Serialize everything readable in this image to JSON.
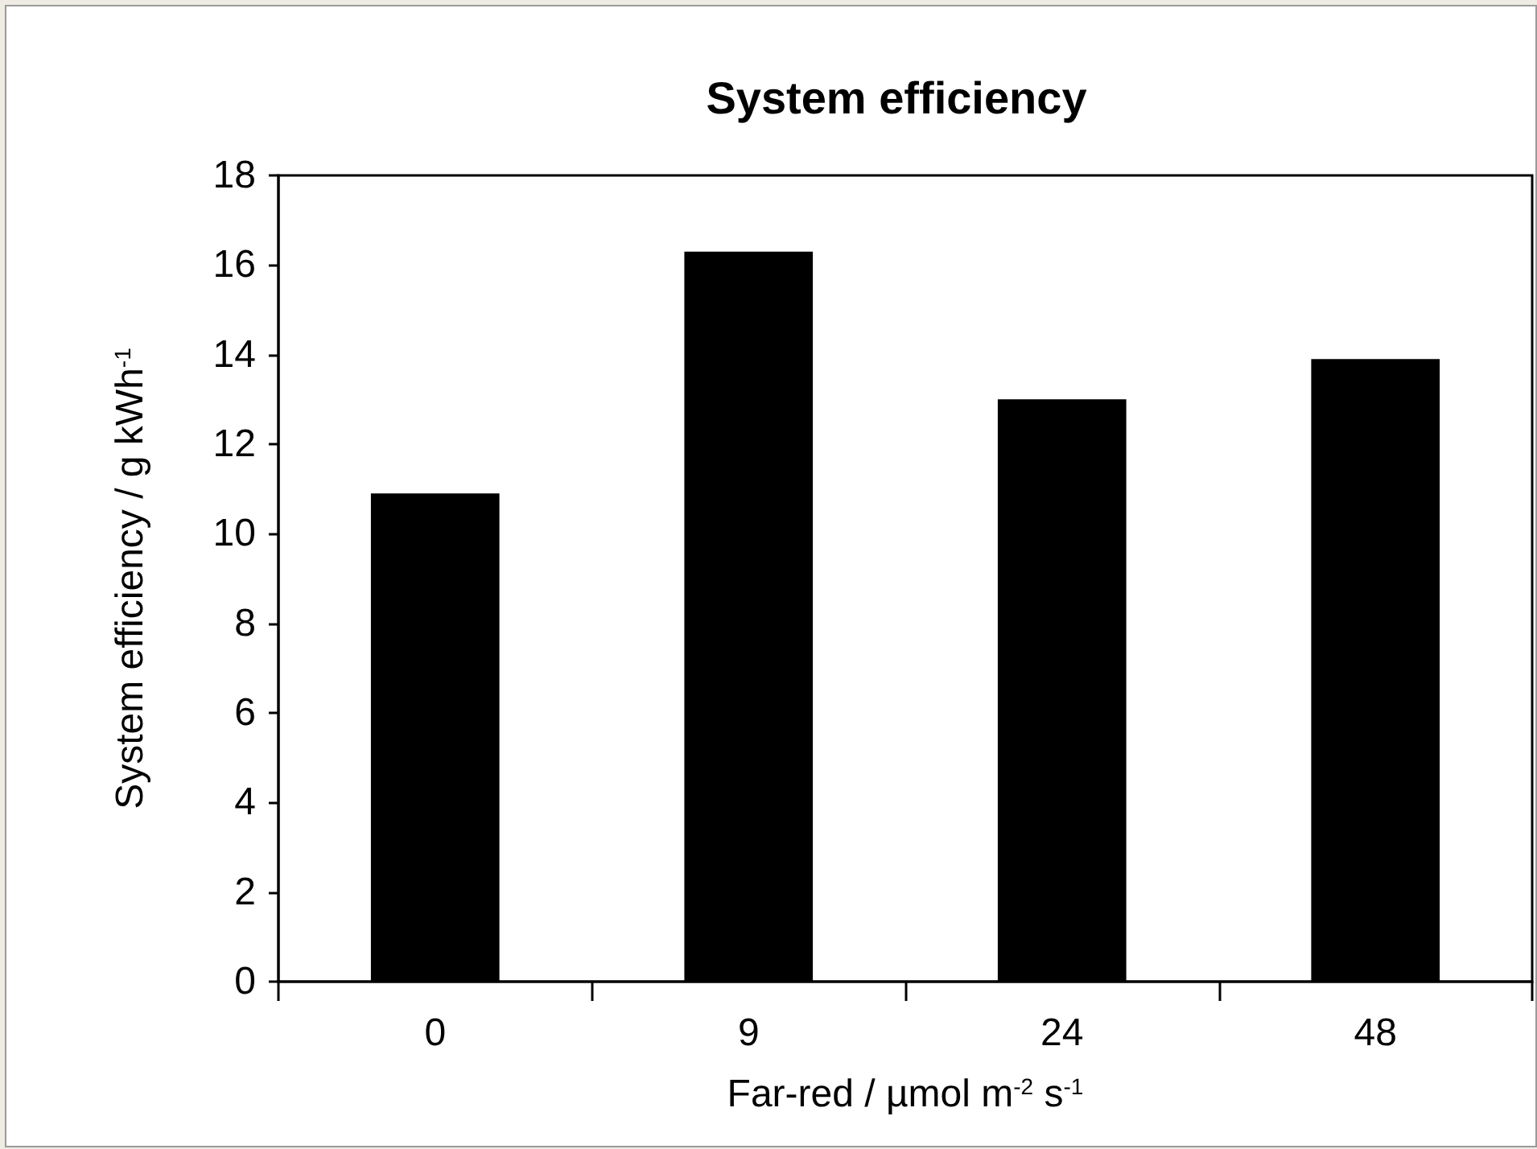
{
  "chart_data": {
    "type": "bar",
    "title": "System efficiency",
    "xlabel": "Far-red / µmol m$^{-2}$ s$^{-1}$",
    "ylabel": "System efficiency / g kWh$^{-1}$",
    "categories": [
      "0",
      "9",
      "24",
      "48"
    ],
    "values": [
      10.9,
      16.3,
      13.0,
      13.9
    ],
    "color": "#000000",
    "ylim": [
      0,
      18
    ],
    "yticks": [
      0,
      2,
      4,
      6,
      8,
      10,
      12,
      14,
      16,
      18
    ]
  }
}
